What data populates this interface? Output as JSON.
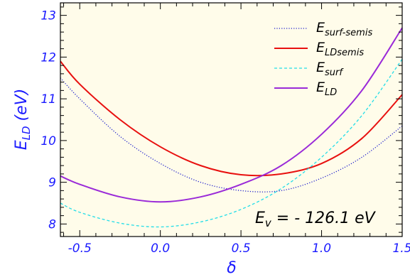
{
  "chart_data": {
    "type": "line",
    "title": "",
    "xlabel": "δ",
    "ylabel": {
      "main": "E",
      "sub": "LD",
      "unit": " (eV)"
    },
    "xlim": [
      -0.62,
      1.5
    ],
    "ylim": [
      7.7,
      13.3
    ],
    "x_ticks": [
      -0.5,
      0.0,
      0.5,
      1.0,
      1.5
    ],
    "x_tick_labels": [
      "-0.5",
      "0.0",
      "0.5",
      "1.0",
      "1.5"
    ],
    "y_ticks": [
      8,
      9,
      10,
      11,
      12,
      13
    ],
    "y_tick_labels": [
      "8",
      "9",
      "10",
      "11",
      "12",
      "13"
    ],
    "grid": false,
    "legend_position": "top-right",
    "background": "#fffcea",
    "annotation": {
      "main": "E",
      "sub": "v",
      "rest": " = - 126.1 eV"
    },
    "series": [
      {
        "name": "E_surf-semis",
        "legend_main": "E",
        "legend_sub": "surf-semis",
        "color": "#1f1fcc",
        "style": "dotted",
        "x": [
          -0.62,
          -0.5,
          -0.25,
          0.0,
          0.25,
          0.5,
          0.75,
          1.0,
          1.25,
          1.5
        ],
        "y": [
          11.5,
          11.0,
          10.1,
          9.45,
          9.0,
          8.8,
          8.8,
          9.1,
          9.6,
          10.35
        ]
      },
      {
        "name": "E_LDsemis",
        "legend_main": "E",
        "legend_sub": "LDsemis",
        "color": "#e8100f",
        "style": "solid",
        "x": [
          -0.62,
          -0.5,
          -0.25,
          0.0,
          0.25,
          0.5,
          0.75,
          1.0,
          1.25,
          1.5
        ],
        "y": [
          11.9,
          11.35,
          10.5,
          9.85,
          9.4,
          9.18,
          9.2,
          9.45,
          10.05,
          11.1
        ]
      },
      {
        "name": "E_surf",
        "legend_main": "E",
        "legend_sub": "surf",
        "color": "#22dde8",
        "style": "dashed",
        "x": [
          -0.62,
          -0.5,
          -0.25,
          0.0,
          0.25,
          0.5,
          0.75,
          1.0,
          1.25,
          1.5
        ],
        "y": [
          8.5,
          8.28,
          8.02,
          7.93,
          8.05,
          8.35,
          8.85,
          9.6,
          10.6,
          11.95
        ]
      },
      {
        "name": "E_LD",
        "legend_main": "E",
        "legend_sub": "LD",
        "color": "#9a2ad8",
        "style": "solid",
        "x": [
          -0.62,
          -0.5,
          -0.25,
          0.0,
          0.25,
          0.5,
          0.75,
          1.0,
          1.25,
          1.5
        ],
        "y": [
          9.15,
          8.95,
          8.65,
          8.53,
          8.65,
          8.95,
          9.4,
          10.15,
          11.2,
          12.7
        ]
      }
    ]
  }
}
